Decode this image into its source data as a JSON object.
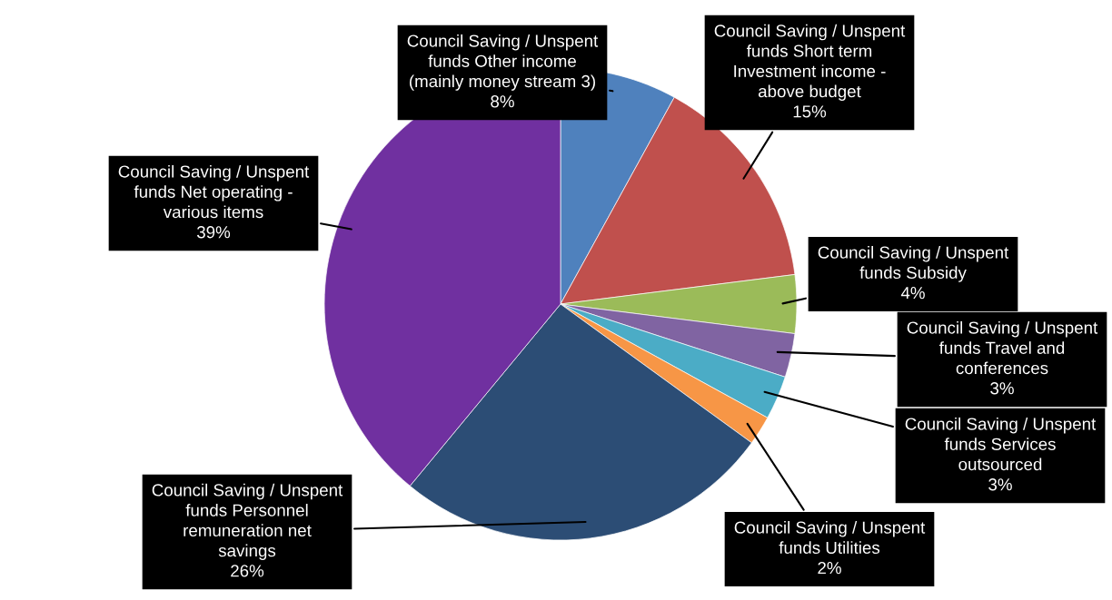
{
  "chart_data": {
    "type": "pie",
    "categories": [
      "Council Saving / Unspent\nfunds Other income\n(mainly money stream 3)",
      "Council Saving / Unspent\nfunds Short term\nInvestment income -\nabove budget",
      "Council Saving / Unspent\nfunds Subsidy",
      "Council Saving / Unspent\nfunds Travel and\nconferences",
      "Council Saving / Unspent\nfunds Services\noutsourced",
      "Council Saving / Unspent\nfunds Utilities",
      "Council Saving / Unspent\nfunds Personnel\nremuneration net\nsavings",
      "Council Saving / Unspent\nfunds Net operating -\nvarious items"
    ],
    "values": [
      8,
      15,
      4,
      3,
      3,
      2,
      26,
      39
    ],
    "value_labels": [
      "8%",
      "15%",
      "4%",
      "3%",
      "3%",
      "2%",
      "26%",
      "39%"
    ],
    "colors": [
      "#4f81bd",
      "#c0504d",
      "#9bbb59",
      "#8064a2",
      "#4bacc6",
      "#f79646",
      "#2c4d75",
      "#7030a0"
    ],
    "legend": false
  }
}
